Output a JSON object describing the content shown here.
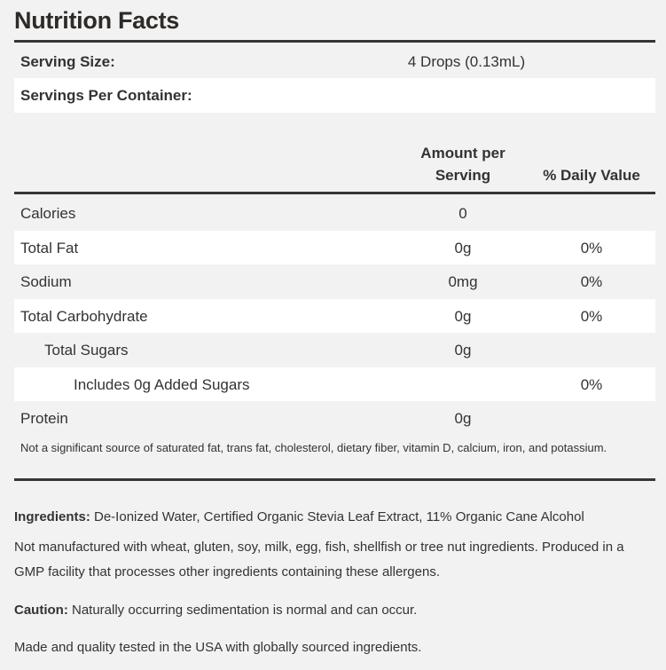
{
  "title": "Nutrition Facts",
  "serving_size": {
    "label": "Serving Size:",
    "value": "4 Drops (0.13mL)"
  },
  "servings_per_container": {
    "label": "Servings Per Container:",
    "value": ""
  },
  "columns": {
    "amount": "Amount per Serving",
    "amount_line1": "Amount per",
    "amount_line2": "Serving",
    "daily_value": "% Daily Value"
  },
  "rows": [
    {
      "label": "Calories",
      "amount": "0",
      "dv": ""
    },
    {
      "label": "Total Fat",
      "amount": "0g",
      "dv": "0%"
    },
    {
      "label": "Sodium",
      "amount": "0mg",
      "dv": "0%"
    },
    {
      "label": "Total Carbohydrate",
      "amount": "0g",
      "dv": "0%"
    },
    {
      "label": "Total Sugars",
      "amount": "0g",
      "dv": ""
    },
    {
      "label": "Includes 0g Added Sugars",
      "amount": "",
      "dv": "0%"
    },
    {
      "label": "Protein",
      "amount": "0g",
      "dv": ""
    }
  ],
  "footnote": "Not a significant source of saturated fat, trans fat, cholesterol, dietary fiber, vitamin D, calcium, iron, and potassium.",
  "ingredients": {
    "label": "Ingredients:",
    "text": " De-Ionized Water, Certified Organic Stevia Leaf Extract, 11% Organic Cane Alcohol"
  },
  "allergen": "Not manufactured with wheat, gluten, soy, milk, egg, fish, shellfish or tree nut ingredients. Produced in a GMP facility that processes other ingredients containing these allergens.",
  "caution": {
    "label": "Caution:",
    "text": " Naturally occurring sedimentation is normal and can occur."
  },
  "origin": "Made and quality tested in the USA with globally sourced ingredients."
}
